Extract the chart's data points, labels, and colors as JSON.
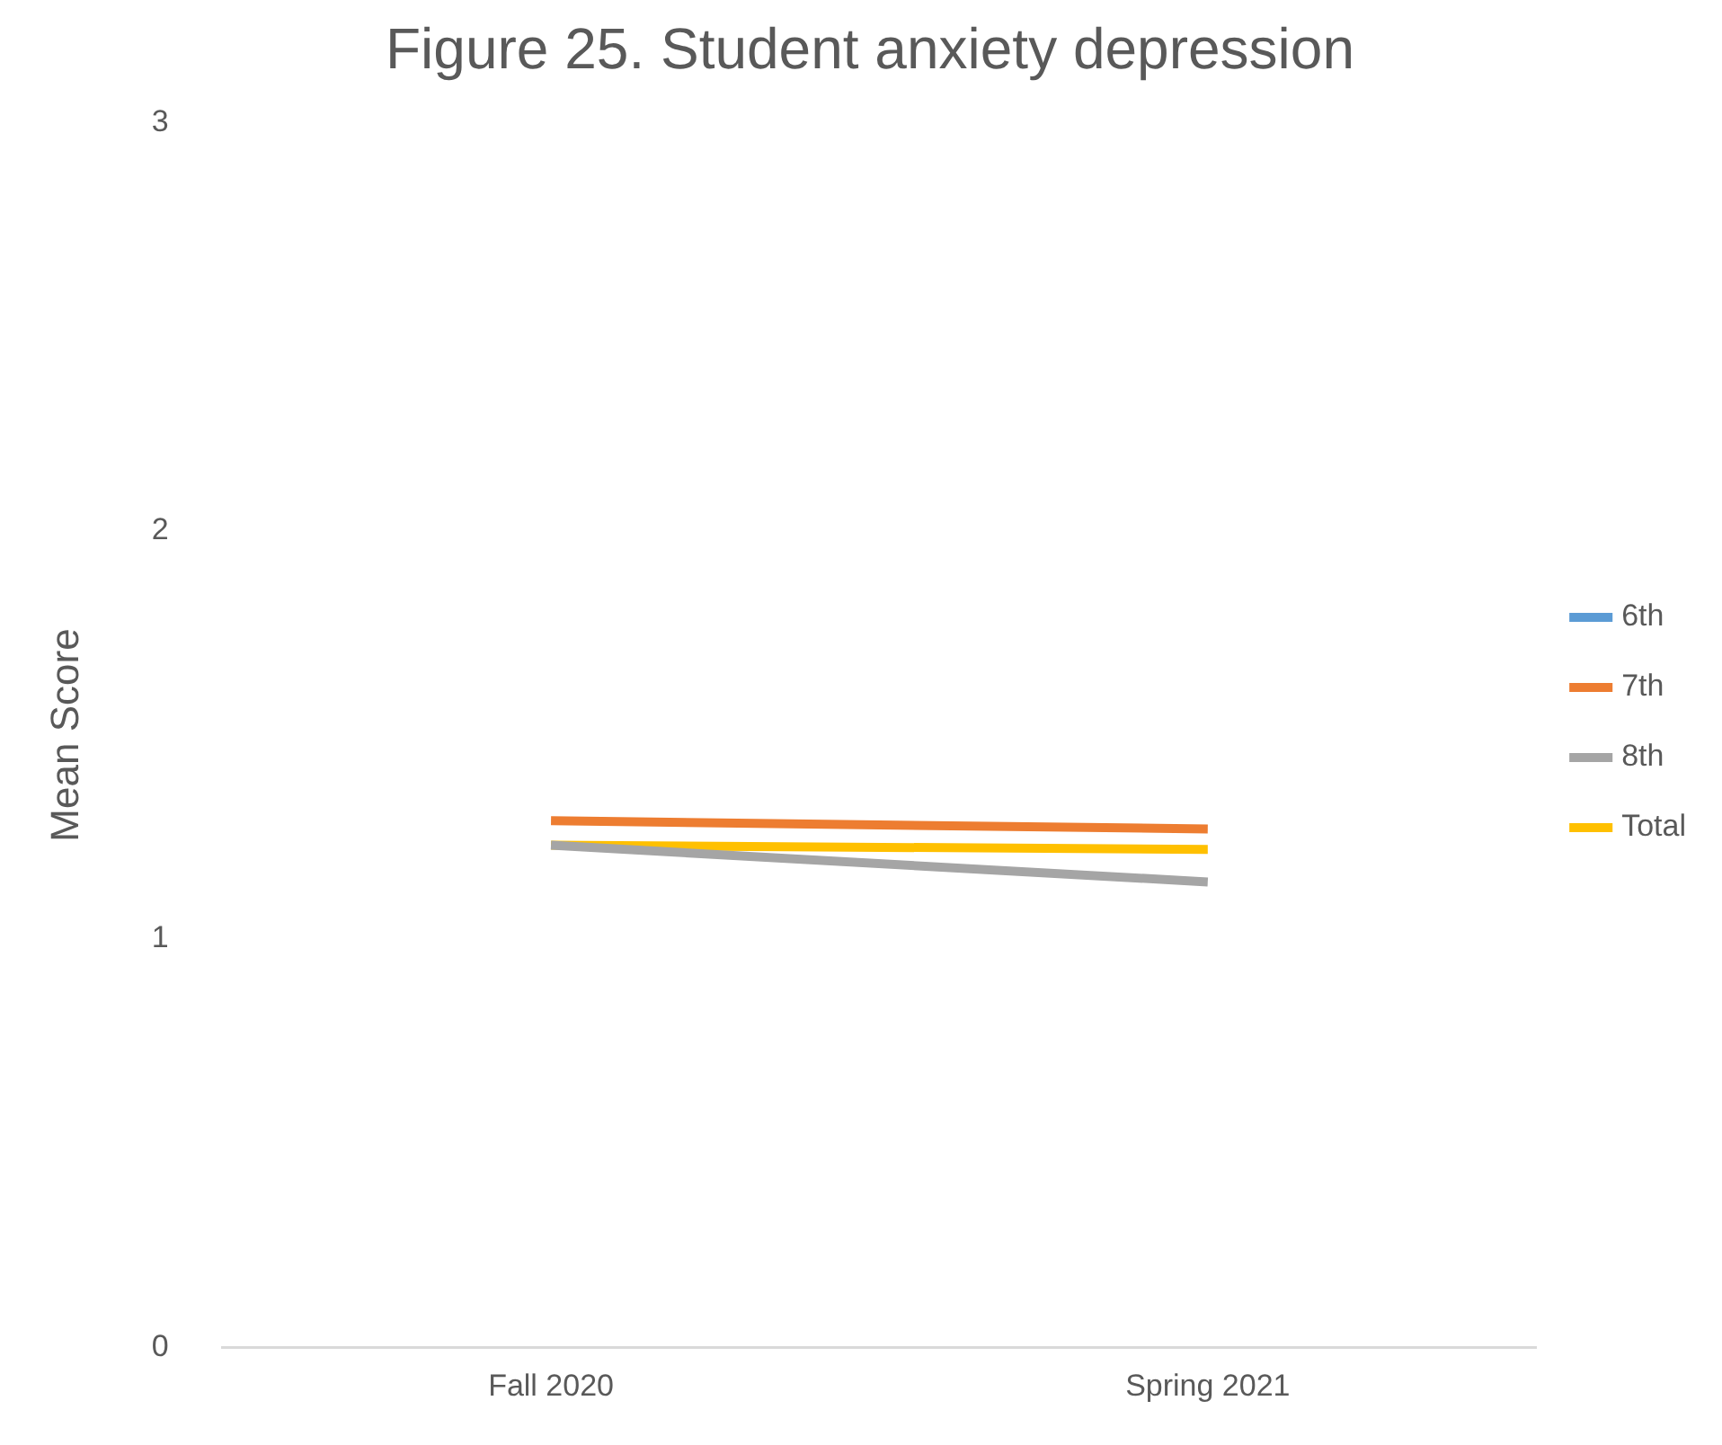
{
  "chart_data": {
    "type": "line",
    "title": "Figure 25. Student anxiety depression",
    "ylabel": "Mean Score",
    "categories": [
      "Fall 2020",
      "Spring 2021"
    ],
    "series": [
      {
        "name": "6th",
        "color": "#5b9bd5",
        "values": [
          null,
          null
        ]
      },
      {
        "name": "7th",
        "color": "#ed7d31",
        "values": [
          1.29,
          1.27
        ]
      },
      {
        "name": "8th",
        "color": "#a5a5a5",
        "values": [
          1.23,
          1.14
        ]
      },
      {
        "name": "Total",
        "color": "#ffc000",
        "values": [
          1.23,
          1.22
        ]
      }
    ],
    "ylim": [
      0,
      3
    ],
    "yticks": [
      0,
      1,
      2,
      3
    ],
    "grid": false,
    "legend": "right",
    "marker": "none",
    "line_style": "solid"
  }
}
